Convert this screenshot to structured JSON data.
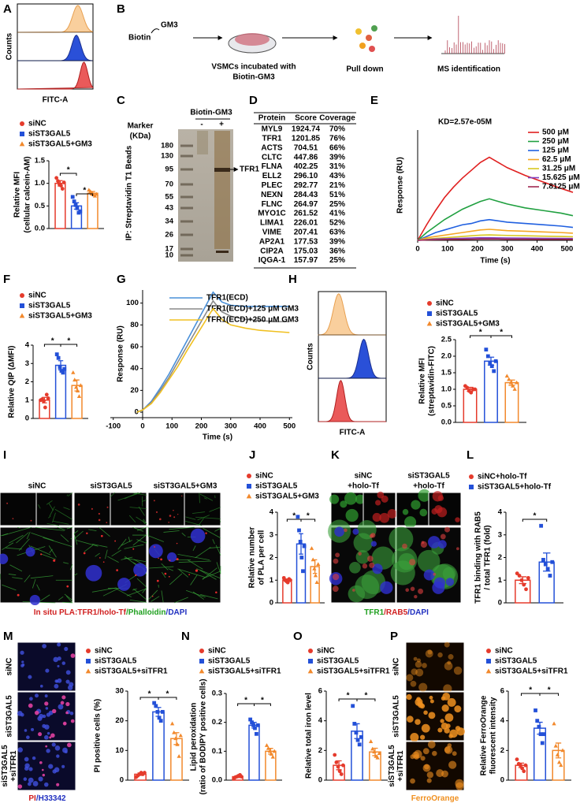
{
  "figure": {
    "letters": [
      "A",
      "B",
      "C",
      "D",
      "E",
      "F",
      "G",
      "H",
      "I",
      "J",
      "K",
      "L",
      "M",
      "N",
      "O",
      "P"
    ],
    "flow_a": {
      "ylabel": "Counts",
      "xlabel": "FITC-A"
    },
    "schematic_b": {
      "biotin": "Biotin",
      "gm3": "GM3",
      "incubation": [
        "VSMCs incubated with",
        "Biotin-GM3"
      ],
      "pulldown": "Pull down",
      "ms": "MS identification"
    },
    "gel_c": {
      "marker": [
        "Marker",
        "(KDa)"
      ],
      "probe": "Biotin-GM3",
      "lanes": [
        "-",
        "+"
      ],
      "ladder": [
        180,
        130,
        95,
        70,
        55,
        43,
        34,
        26,
        17,
        10
      ],
      "band": "TFR1",
      "ylabel": "IP: Streptavidin T1 Beads"
    },
    "table_d": {
      "header": [
        "Protein",
        "Score",
        "Coverage"
      ],
      "rows": [
        [
          "MYL9",
          "1924.74",
          "70%"
        ],
        [
          "TFR1",
          "1201.85",
          "76%"
        ],
        [
          "ACTS",
          "704.51",
          "66%"
        ],
        [
          "CLTC",
          "447.86",
          "39%"
        ],
        [
          "FLNA",
          "402.25",
          "31%"
        ],
        [
          "ELL2",
          "296.10",
          "43%"
        ],
        [
          "PLEC",
          "292.77",
          "21%"
        ],
        [
          "NEXN",
          "284.43",
          "51%"
        ],
        [
          "FLNC",
          "264.97",
          "25%"
        ],
        [
          "MYO1C",
          "261.52",
          "41%"
        ],
        [
          "LIMA1",
          "226.01",
          "52%"
        ],
        [
          "VIME",
          "207.41",
          "63%"
        ],
        [
          "AP2A1",
          "177.53",
          "39%"
        ],
        [
          "CIP2A",
          "175.03",
          "36%"
        ],
        [
          "IQGA-1",
          "157.97",
          "25%"
        ]
      ]
    },
    "flow_h": {
      "ylabel": "Counts",
      "xlabel": "FITC-A"
    },
    "images_i": {
      "columns": [
        "siNC",
        "siST3GAL5",
        "siST3GAL5+GM3"
      ],
      "caption": [
        "In situ PLA:TFR1/holo-Tf",
        "/Phalloidin",
        "/DAPI"
      ]
    },
    "images_k": {
      "columns": [
        [
          "siNC",
          "+holo-Tf"
        ],
        [
          "siST3GAL5",
          "+holo-Tf"
        ]
      ],
      "caption": [
        "TFR1",
        "/RAB5",
        "/DAPI"
      ]
    },
    "images_m": {
      "rows": [
        [
          "siNC"
        ],
        [
          "siST3GAL5"
        ],
        [
          "siST3GAL5",
          "+siTFR1"
        ]
      ],
      "caption": [
        "PI",
        "/H33342"
      ]
    },
    "images_p": {
      "rows": [
        [
          "siNC"
        ],
        [
          "siST3GAL5"
        ],
        [
          "siST3GAL5",
          "+siTFR1"
        ]
      ],
      "caption": [
        "FerroOrange"
      ]
    }
  },
  "chart_data": [
    {
      "type": "bar",
      "ylabel": [
        "Relative MFI",
        "(cellular calcein-AM)"
      ],
      "ylim": [
        0,
        1.5
      ],
      "yticks": [
        {
          "value": 0,
          "label": "0.0"
        },
        0.5,
        {
          "value": 1,
          "label": "1.0"
        },
        1.5
      ],
      "significance": [
        "*",
        "*"
      ],
      "series": [
        {
          "name": "siNC",
          "color": "#e53b2c",
          "values": [
            1.0
          ],
          "errors": [
            0.06
          ],
          "points": [
            1.12,
            1.05,
            0.98,
            0.95,
            0.88,
            1.02
          ]
        },
        {
          "name": "siST3GAL5",
          "color": "#2350d8",
          "values": [
            0.5
          ],
          "errors": [
            0.07
          ],
          "points": [
            0.7,
            0.6,
            0.52,
            0.45,
            0.35,
            0.38
          ]
        },
        {
          "name": "siST3GAL5+GM3",
          "color": "#f2892c",
          "values": [
            0.78
          ],
          "errors": [
            0.04
          ],
          "points": [
            0.85,
            0.82,
            0.78,
            0.75,
            0.72,
            0.76
          ]
        }
      ]
    },
    {
      "type": "line",
      "title": "KD=2.57e-05M",
      "ylabel": "Response (RU)",
      "xlabel": "Time (s)",
      "x": [
        0,
        30,
        60,
        90,
        120,
        150,
        180,
        210,
        240,
        270,
        300,
        360,
        420,
        480,
        520
      ],
      "xlim": [
        0,
        520
      ],
      "ylim": [
        0,
        85
      ],
      "xticks": [
        0,
        100,
        200,
        300,
        400,
        500
      ],
      "series": [
        {
          "name": "500 μM",
          "color": "#e02020",
          "values": [
            0,
            12,
            23,
            33,
            41,
            48,
            54,
            60,
            64,
            60,
            56,
            50,
            45,
            40,
            37
          ]
        },
        {
          "name": "250 μM",
          "color": "#20a040",
          "values": [
            0,
            6,
            11,
            16,
            20,
            24,
            27,
            30,
            32,
            30,
            28,
            25,
            23,
            21,
            19
          ]
        },
        {
          "name": "125 μM",
          "color": "#2060e0",
          "values": [
            0,
            3,
            6,
            8,
            10,
            12,
            13,
            15,
            16,
            15,
            14,
            13,
            12,
            11,
            10
          ]
        },
        {
          "name": "62.5 μM",
          "color": "#f5a623",
          "values": [
            0,
            2,
            3,
            4,
            5,
            6,
            7,
            8,
            8.5,
            8,
            7.5,
            7,
            6.5,
            6,
            5.5
          ]
        },
        {
          "name": "31.25 μM",
          "color": "#d8c820",
          "values": [
            0,
            1,
            1.5,
            2,
            2.5,
            3,
            3.5,
            4,
            4.2,
            4,
            3.8,
            3.5,
            3.2,
            3,
            2.8
          ]
        },
        {
          "name": "15.625 μM",
          "color": "#8040c0",
          "values": [
            0,
            0.5,
            1,
            1.2,
            1.4,
            1.6,
            1.8,
            2,
            2,
            1.9,
            1.8,
            1.7,
            1.6,
            1.5,
            1.4
          ]
        },
        {
          "name": "7.8125 μM",
          "color": "#a02850",
          "values": [
            0,
            0.3,
            0.5,
            0.6,
            0.7,
            0.8,
            0.9,
            1,
            1,
            1,
            0.9,
            0.9,
            0.8,
            0.8,
            0.7
          ]
        }
      ]
    },
    {
      "type": "bar",
      "ylabel": [
        "Relative QIP (ΔMFI)"
      ],
      "ylim": [
        0,
        4
      ],
      "yticks": [
        0,
        1,
        2,
        3,
        4
      ],
      "significance": [
        "*",
        "*"
      ],
      "series": [
        {
          "name": "siNC",
          "color": "#e53b2c",
          "values": [
            1.0
          ],
          "errors": [
            0.15
          ],
          "points": [
            1.0,
            1.05,
            0.95,
            0.6,
            1.3,
            1.1
          ]
        },
        {
          "name": "siST3GAL5",
          "color": "#2350d8",
          "values": [
            2.9
          ],
          "errors": [
            0.25
          ],
          "points": [
            3.5,
            3.3,
            2.8,
            2.6,
            2.5,
            2.7
          ]
        },
        {
          "name": "siST3GAL5+GM3",
          "color": "#f2892c",
          "values": [
            1.8
          ],
          "errors": [
            0.3
          ],
          "points": [
            2.5,
            2.1,
            1.7,
            1.5,
            1.2,
            1.8
          ]
        }
      ]
    },
    {
      "type": "line",
      "ylabel": "Response (RU)",
      "xlabel": "Time (s)",
      "x": [
        -20,
        0,
        30,
        60,
        90,
        120,
        150,
        180,
        210,
        240,
        270,
        300,
        350,
        400,
        450,
        500
      ],
      "xlim": [
        -110,
        510
      ],
      "ylim": [
        -5,
        112
      ],
      "xticks": [
        -100,
        0,
        100,
        200,
        300,
        400,
        500
      ],
      "yticks": [
        0,
        20,
        40,
        60,
        80,
        100
      ],
      "series": [
        {
          "name": "TFR1(ECD)",
          "color": "#4a90d9",
          "values": [
            0,
            2,
            10,
            22,
            35,
            50,
            65,
            80,
            95,
            110,
            101,
            98,
            97,
            97,
            97,
            97
          ]
        },
        {
          "name": "TFR1(ECD)+125 μM GM3",
          "color": "#8a8a8a",
          "values": [
            0,
            2,
            9,
            20,
            32,
            46,
            60,
            74,
            88,
            102,
            92,
            88,
            85,
            84,
            83,
            83
          ]
        },
        {
          "name": "TFR1(ECD)+250 μM GM3",
          "color": "#f0c020",
          "values": [
            0,
            2,
            8,
            18,
            30,
            42,
            56,
            69,
            82,
            95,
            85,
            80,
            77,
            75,
            74,
            73
          ]
        }
      ]
    },
    {
      "type": "bar",
      "ylabel": [
        "Relative MFI",
        "(streptavidin-FITC)"
      ],
      "ylim": [
        0,
        2.5
      ],
      "yticks": [
        {
          "value": 0,
          "label": "0.0"
        },
        0.5,
        {
          "value": 1,
          "label": "1.0"
        },
        1.5,
        {
          "value": 2,
          "label": "2.0"
        },
        2.5
      ],
      "significance": [
        "*",
        "*"
      ],
      "series": [
        {
          "name": "siNC",
          "color": "#e53b2c",
          "values": [
            1.0
          ],
          "errors": [
            0.06
          ],
          "points": [
            1.1,
            1.05,
            0.95,
            0.9,
            1.0,
            1.0
          ]
        },
        {
          "name": "siST3GAL5",
          "color": "#2350d8",
          "values": [
            1.85
          ],
          "errors": [
            0.12
          ],
          "points": [
            2.2,
            2.0,
            1.8,
            1.7,
            1.55,
            1.85
          ]
        },
        {
          "name": "siST3GAL5+GM3",
          "color": "#f2892c",
          "values": [
            1.2
          ],
          "errors": [
            0.08
          ],
          "points": [
            1.4,
            1.3,
            1.2,
            1.1,
            1.0,
            1.2
          ]
        }
      ]
    },
    {
      "type": "bar",
      "ylabel": [
        "Relative number",
        "of PLA per cell"
      ],
      "ylim": [
        0,
        4
      ],
      "yticks": [
        0,
        1,
        2,
        3,
        4
      ],
      "significance": [
        "*",
        "*"
      ],
      "series": [
        {
          "name": "siNC",
          "color": "#e53b2c",
          "values": [
            1.0
          ],
          "errors": [
            0.05
          ],
          "points": [
            1.1,
            1.0,
            0.95,
            0.9,
            1.05,
            1.0
          ]
        },
        {
          "name": "siST3GAL5",
          "color": "#2350d8",
          "values": [
            2.6
          ],
          "errors": [
            0.45
          ],
          "points": [
            3.8,
            3.2,
            2.7,
            2.0,
            1.4,
            2.5
          ]
        },
        {
          "name": "siST3GAL5+GM3",
          "color": "#f2892c",
          "values": [
            1.6
          ],
          "errors": [
            0.3
          ],
          "points": [
            2.4,
            1.9,
            1.5,
            1.2,
            0.9,
            1.7
          ]
        }
      ]
    },
    {
      "type": "bar",
      "ylabel": [
        "TFR1 binding with RAB5",
        "/ total TFR1 (fold)"
      ],
      "ylim": [
        0,
        4
      ],
      "yticks": [
        0,
        1,
        2,
        3,
        4
      ],
      "significance": [
        "*"
      ],
      "series": [
        {
          "name": "siNC+holo-Tf",
          "color": "#e53b2c",
          "values": [
            1.0
          ],
          "errors": [
            0.15
          ],
          "points": [
            1.3,
            1.2,
            1.0,
            0.8,
            0.6,
            1.1
          ]
        },
        {
          "name": "siST3GAL5+holo-Tf",
          "color": "#2350d8",
          "values": [
            1.8
          ],
          "errors": [
            0.4
          ],
          "points": [
            3.4,
            1.9,
            1.7,
            1.5,
            1.2,
            1.8
          ]
        }
      ]
    },
    {
      "type": "bar",
      "ylabel": [
        "PI positive cells (%)"
      ],
      "ylim": [
        0,
        30
      ],
      "yticks": [
        0,
        10,
        20,
        30
      ],
      "significance": [
        "*",
        "*"
      ],
      "series": [
        {
          "name": "siNC",
          "color": "#e53b2c",
          "values": [
            2
          ],
          "errors": [
            0.4
          ],
          "points": [
            1,
            1.5,
            2,
            2.5,
            2,
            2.5
          ]
        },
        {
          "name": "siST3GAL5",
          "color": "#2350d8",
          "values": [
            23
          ],
          "errors": [
            1.5
          ],
          "points": [
            26,
            25,
            23,
            21,
            20,
            23
          ]
        },
        {
          "name": "siST3GAL5+siTFR1",
          "color": "#f2892c",
          "values": [
            14
          ],
          "errors": [
            2
          ],
          "points": [
            19,
            16,
            14,
            12,
            8,
            15
          ]
        }
      ]
    },
    {
      "type": "bar",
      "ylabel": [
        "Lipid peroxidation",
        "(ratio of BODIPY positive cells)"
      ],
      "ylim": [
        0,
        0.3
      ],
      "yticks": [
        {
          "value": 0,
          "label": "0.0"
        },
        0.1,
        0.2,
        0.3
      ],
      "significance": [
        "*",
        "*"
      ],
      "series": [
        {
          "name": "siNC",
          "color": "#e53b2c",
          "values": [
            0.012
          ],
          "errors": [
            0.003
          ],
          "points": [
            0.005,
            0.01,
            0.012,
            0.015,
            0.018,
            0.012
          ]
        },
        {
          "name": "siST3GAL5",
          "color": "#2350d8",
          "values": [
            0.19
          ],
          "errors": [
            0.01
          ],
          "points": [
            0.21,
            0.2,
            0.19,
            0.18,
            0.16,
            0.19
          ]
        },
        {
          "name": "siST3GAL5+siTFR1",
          "color": "#f2892c",
          "values": [
            0.1
          ],
          "errors": [
            0.01
          ],
          "points": [
            0.12,
            0.11,
            0.1,
            0.09,
            0.08,
            0.1
          ]
        }
      ]
    },
    {
      "type": "bar",
      "ylabel": [
        "Relative total iron level"
      ],
      "ylim": [
        0,
        6
      ],
      "yticks": [
        0,
        2,
        4,
        6
      ],
      "significance": [
        "*",
        "*"
      ],
      "series": [
        {
          "name": "siNC",
          "color": "#e53b2c",
          "values": [
            1.0
          ],
          "errors": [
            0.3
          ],
          "points": [
            1.7,
            1.2,
            0.9,
            0.6,
            0.4,
            1.0
          ]
        },
        {
          "name": "siST3GAL5",
          "color": "#2350d8",
          "values": [
            3.3
          ],
          "errors": [
            0.5
          ],
          "points": [
            5.0,
            3.8,
            3.2,
            2.7,
            2.4,
            2.9
          ]
        },
        {
          "name": "siST3GAL5+siTFR1",
          "color": "#f2892c",
          "values": [
            1.9
          ],
          "errors": [
            0.25
          ],
          "points": [
            2.6,
            2.1,
            1.9,
            1.6,
            1.5,
            1.8
          ]
        }
      ]
    },
    {
      "type": "bar",
      "ylabel": [
        "Relative FerroOrange",
        "fluorescent intensity"
      ],
      "ylim": [
        0,
        6
      ],
      "yticks": [
        0,
        2,
        4,
        6
      ],
      "significance": [
        "*",
        "*"
      ],
      "series": [
        {
          "name": "siNC",
          "color": "#e53b2c",
          "values": [
            1.0
          ],
          "errors": [
            0.15
          ],
          "points": [
            1.4,
            1.1,
            1.0,
            0.8,
            0.6,
            1.0
          ]
        },
        {
          "name": "siST3GAL5",
          "color": "#2350d8",
          "values": [
            3.5
          ],
          "errors": [
            0.4
          ],
          "points": [
            4.7,
            4.0,
            3.6,
            3.1,
            2.5,
            3.1
          ]
        },
        {
          "name": "siST3GAL5+siTFR1",
          "color": "#f2892c",
          "values": [
            2.0
          ],
          "errors": [
            0.5
          ],
          "points": [
            3.8,
            2.3,
            1.7,
            1.2,
            1.0,
            2.0
          ]
        }
      ]
    }
  ]
}
